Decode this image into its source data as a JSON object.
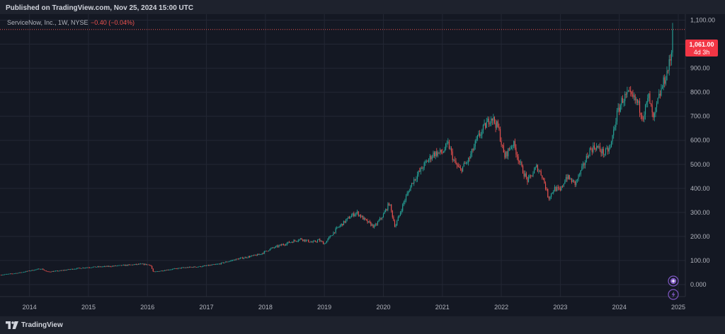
{
  "header": {
    "published": "Published on TradingView.com, Nov 25, 2024 15:00 UTC"
  },
  "legend": {
    "symbol": "ServiceNow, Inc., 1W, NYSE",
    "change": "−0.40 (−0.04%)"
  },
  "price_label": {
    "price": "1,061.00",
    "countdown": "4d 3h"
  },
  "footer": {
    "brand": "TradingView"
  },
  "colors": {
    "background": "#141823",
    "up": "#26a69a",
    "down": "#ef5350",
    "price_line": "#ef5350",
    "grid": "#232734",
    "axis_text": "#b2b5be",
    "icon_accent": "#7e57c2"
  },
  "icons": [
    "tradingview-logo-icon",
    "plus-icon",
    "lightning-icon"
  ],
  "chart_data": {
    "type": "candlestick",
    "interval": "1W",
    "ylim": [
      -50,
      1125
    ],
    "y_ticks": [
      0,
      100,
      200,
      300,
      400,
      500,
      600,
      700,
      800,
      900,
      1000,
      1100
    ],
    "y_tick_labels": [
      "0.000",
      "100.00",
      "200.00",
      "300.00",
      "400.00",
      "500.00",
      "600.00",
      "700.00",
      "800.00",
      "900.00",
      "1,000.00",
      "1,100.00"
    ],
    "x_range": [
      2013.5,
      2025.12
    ],
    "x_ticks": [
      2014,
      2015,
      2016,
      2017,
      2018,
      2019,
      2020,
      2021,
      2022,
      2023,
      2024,
      2025
    ],
    "x_tick_labels": [
      "2014",
      "2015",
      "2016",
      "2017",
      "2018",
      "2019",
      "2020",
      "2021",
      "2022",
      "2023",
      "2024",
      "2025"
    ],
    "last_price": 1061.0,
    "price_anchors": [
      [
        2013.5,
        40
      ],
      [
        2013.8,
        48
      ],
      [
        2014.1,
        62
      ],
      [
        2014.2,
        66
      ],
      [
        2014.3,
        53
      ],
      [
        2014.5,
        57
      ],
      [
        2014.8,
        67
      ],
      [
        2015.0,
        72
      ],
      [
        2015.3,
        75
      ],
      [
        2015.6,
        80
      ],
      [
        2015.9,
        85
      ],
      [
        2016.05,
        82
      ],
      [
        2016.1,
        52
      ],
      [
        2016.3,
        60
      ],
      [
        2016.6,
        70
      ],
      [
        2016.9,
        75
      ],
      [
        2017.2,
        85
      ],
      [
        2017.5,
        105
      ],
      [
        2017.9,
        125
      ],
      [
        2018.1,
        150
      ],
      [
        2018.4,
        175
      ],
      [
        2018.6,
        190
      ],
      [
        2018.8,
        175
      ],
      [
        2018.9,
        185
      ],
      [
        2019.0,
        170
      ],
      [
        2019.2,
        230
      ],
      [
        2019.45,
        285
      ],
      [
        2019.55,
        300
      ],
      [
        2019.7,
        265
      ],
      [
        2019.85,
        240
      ],
      [
        2020.0,
        290
      ],
      [
        2020.1,
        340
      ],
      [
        2020.2,
        240
      ],
      [
        2020.35,
        345
      ],
      [
        2020.5,
        430
      ],
      [
        2020.7,
        500
      ],
      [
        2020.85,
        545
      ],
      [
        2021.0,
        550
      ],
      [
        2021.1,
        585
      ],
      [
        2021.2,
        510
      ],
      [
        2021.3,
        475
      ],
      [
        2021.45,
        520
      ],
      [
        2021.6,
        610
      ],
      [
        2021.7,
        650
      ],
      [
        2021.83,
        700
      ],
      [
        2021.95,
        650
      ],
      [
        2022.05,
        530
      ],
      [
        2022.2,
        590
      ],
      [
        2022.35,
        480
      ],
      [
        2022.45,
        430
      ],
      [
        2022.6,
        490
      ],
      [
        2022.7,
        450
      ],
      [
        2022.8,
        360
      ],
      [
        2022.9,
        400
      ],
      [
        2023.0,
        390
      ],
      [
        2023.1,
        450
      ],
      [
        2023.25,
        420
      ],
      [
        2023.35,
        470
      ],
      [
        2023.5,
        560
      ],
      [
        2023.6,
        575
      ],
      [
        2023.75,
        545
      ],
      [
        2023.85,
        570
      ],
      [
        2023.95,
        700
      ],
      [
        2024.05,
        770
      ],
      [
        2024.15,
        790
      ],
      [
        2024.3,
        760
      ],
      [
        2024.4,
        700
      ],
      [
        2024.5,
        780
      ],
      [
        2024.58,
        680
      ],
      [
        2024.65,
        760
      ],
      [
        2024.75,
        840
      ],
      [
        2024.83,
        900
      ],
      [
        2024.88,
        950
      ],
      [
        2024.9,
        1040
      ],
      [
        2024.92,
        1061
      ]
    ]
  }
}
